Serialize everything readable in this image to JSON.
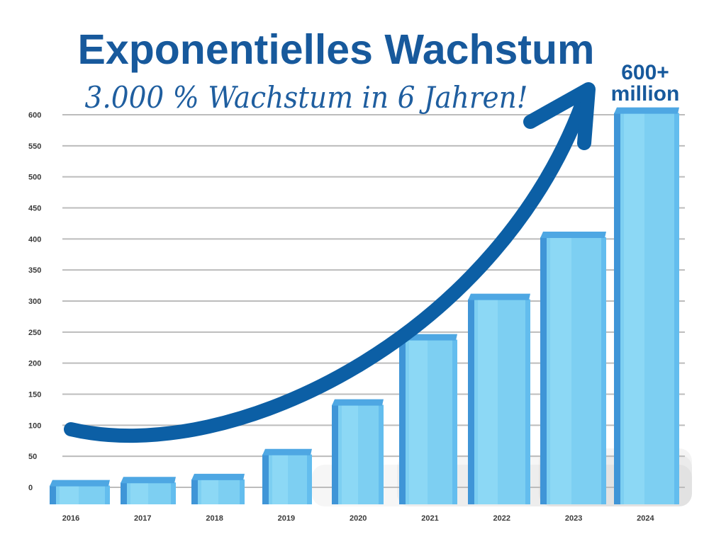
{
  "chart_data": {
    "type": "bar",
    "title": "Exponentielles Wachstum",
    "subtitle": "3.000 % Wachstum in 6 Jahren!",
    "categories": [
      "2016",
      "2017",
      "2018",
      "2019",
      "2020",
      "2021",
      "2022",
      "2023",
      "2024"
    ],
    "values": [
      5,
      10,
      15,
      55,
      135,
      240,
      305,
      405,
      605
    ],
    "ylim": [
      0,
      600
    ],
    "yticks": [
      0,
      50,
      100,
      150,
      200,
      250,
      300,
      350,
      400,
      450,
      500,
      550,
      600
    ],
    "annotation": {
      "line1": "600+",
      "line2": "million"
    },
    "grid": true
  },
  "colors": {
    "title": "#17599c",
    "subtitle": "#1f5e9f",
    "annotation": "#17599c",
    "arrow": "#0c5fa5",
    "bar_face": "#7dcff2",
    "bar_highlight": "#93dbf7",
    "bar_top": "#4ea7e3",
    "bar_side": "#3f95d7",
    "bar_edge": "#63bdee",
    "gridline": "#bcbcbc",
    "tick_text": "#3a3a3a",
    "shadow": "#000000"
  }
}
